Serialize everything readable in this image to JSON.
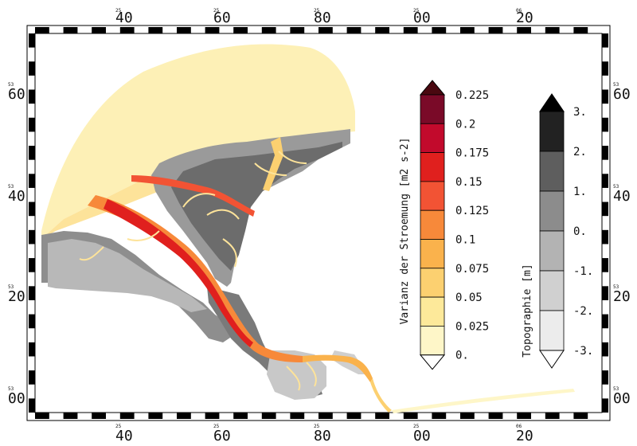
{
  "map": {
    "top_ticks": [
      {
        "small": "25",
        "big": "40"
      },
      {
        "small": "25",
        "big": "60"
      },
      {
        "small": "25",
        "big": "80"
      },
      {
        "small": "25",
        "big": "00"
      },
      {
        "small": "06",
        "big": "20"
      }
    ],
    "bottom_ticks": [
      {
        "small": "25",
        "big": "40"
      },
      {
        "small": "25",
        "big": "60"
      },
      {
        "small": "25",
        "big": "80"
      },
      {
        "small": "25",
        "big": "00"
      },
      {
        "small": "06",
        "big": "20"
      }
    ],
    "left_ticks": [
      {
        "small": "53",
        "big": "60"
      },
      {
        "small": "53",
        "big": "40"
      },
      {
        "small": "53",
        "big": "20"
      },
      {
        "small": "53",
        "big": "00"
      }
    ],
    "right_ticks": [
      {
        "small": "53",
        "big": "60"
      },
      {
        "small": "53",
        "big": "40"
      },
      {
        "small": "53",
        "big": "20"
      },
      {
        "small": "53",
        "big": "00"
      }
    ]
  },
  "legend_variance": {
    "title": "Varianz der Stroemung [m2 s-2]",
    "labels": [
      "0.225",
      "0.2",
      "0.175",
      "0.15",
      "0.125",
      "0.1",
      "0.075",
      "0.05",
      "0.025",
      "0."
    ],
    "colors": [
      "#7a0a28",
      "#c20a2c",
      "#e0201e",
      "#f25334",
      "#f7893a",
      "#fab24c",
      "#fcd070",
      "#fde99a",
      "#fef6c8",
      "#ffffff"
    ],
    "top_arrow_color": "#4a0810"
  },
  "legend_topo": {
    "title": "Topographie [m]",
    "labels": [
      "3.",
      "2.",
      "1.",
      "0.",
      "-1.",
      "-2.",
      "-3."
    ],
    "colors": [
      "#222222",
      "#5e5e5e",
      "#8c8c8c",
      "#b3b3b3",
      "#d0d0d0",
      "#ececec"
    ],
    "top_arrow_color": "#000000"
  }
}
